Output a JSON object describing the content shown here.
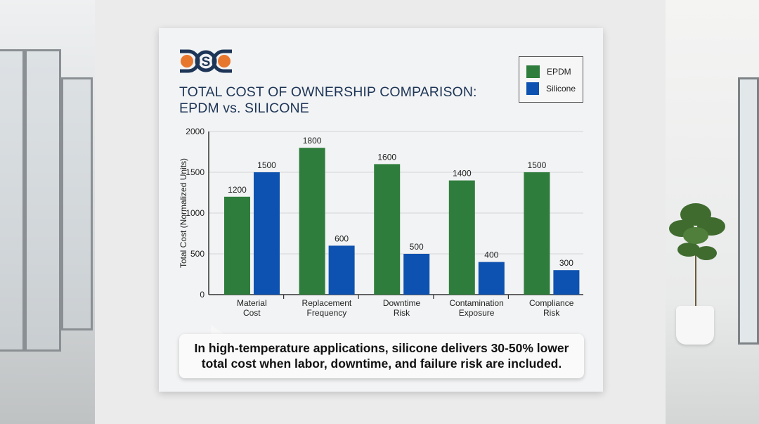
{
  "logo": {
    "text": "DSC"
  },
  "title_line1": "TOTAL COST OF OWNERSHIP COMPARISON:",
  "title_line2": "EPDM vs. SILICONE",
  "callout_line1": "In high-temperature applications, silicone delivers 30-50% lower",
  "callout_line2": "total cost when labor, downtime, and failure risk are included.",
  "colors": {
    "epdm": "#2e7d3c",
    "silicone": "#0d52b0",
    "title": "#1d3557",
    "logo_orange": "#e8772e"
  },
  "chart_data": {
    "type": "bar",
    "categories": [
      [
        "Material",
        "Cost"
      ],
      [
        "Replacement",
        "Frequency"
      ],
      [
        "Downtime",
        "Risk"
      ],
      [
        "Contamination",
        "Exposure"
      ],
      [
        "Compliance",
        "Risk"
      ]
    ],
    "series": [
      {
        "name": "EPDM",
        "values": [
          1200,
          1800,
          1600,
          1400,
          1500
        ]
      },
      {
        "name": "Silicone",
        "values": [
          1500,
          600,
          500,
          400,
          300
        ]
      }
    ],
    "ylabel": "Total Cost (Normalized Units)",
    "ylim": [
      0,
      2000
    ],
    "yticks": [
      0,
      500,
      1000,
      1500,
      2000
    ],
    "grid": true,
    "legend": "top-right",
    "data_labels": true
  }
}
